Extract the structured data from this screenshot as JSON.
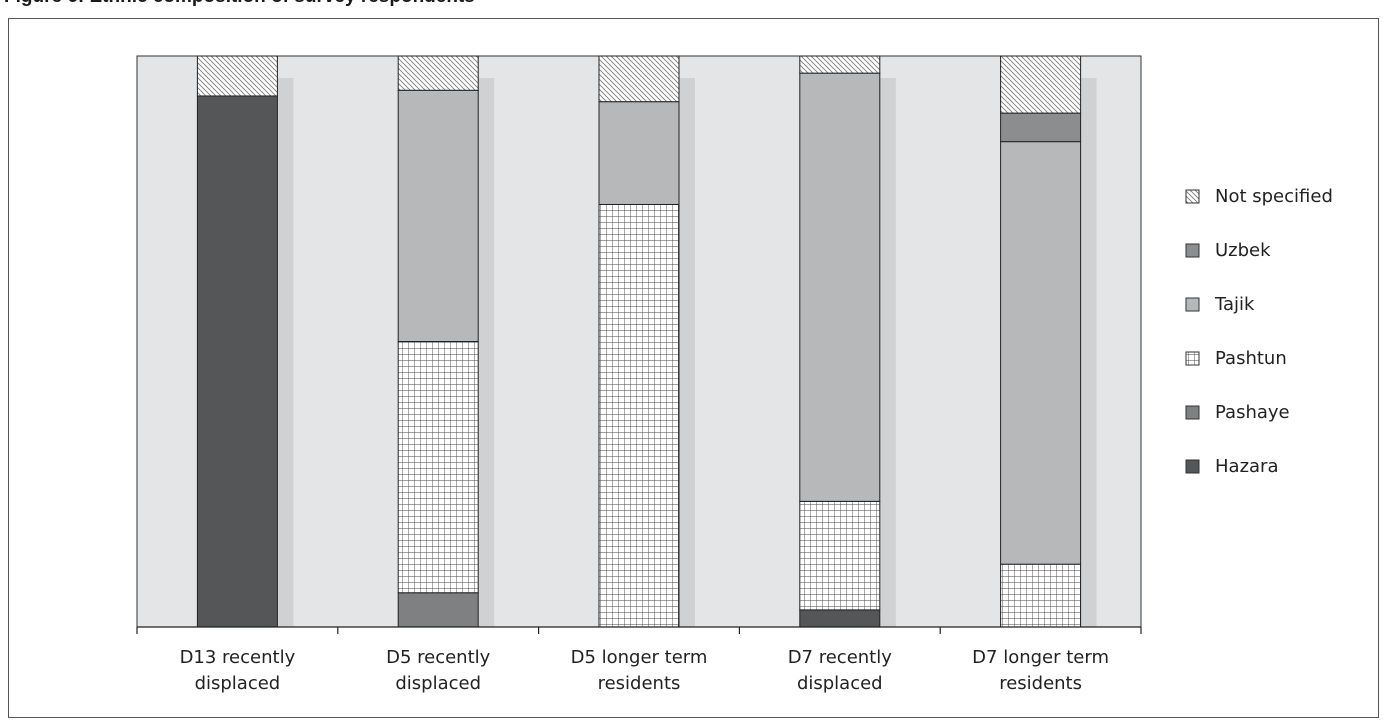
{
  "title": "Figure 6: Ethnic composition of survey respondents",
  "chart_data": {
    "type": "bar",
    "stacked": true,
    "percent_stacked": true,
    "categories": [
      [
        "D13 recently",
        "displaced"
      ],
      [
        "D5 recently",
        "displaced"
      ],
      [
        "D5 longer term",
        "residents"
      ],
      [
        "D7 recently",
        "displaced"
      ],
      [
        "D7 longer term",
        "residents"
      ]
    ],
    "series": [
      {
        "name": "Hazara",
        "values": [
          93,
          0,
          0,
          3,
          0
        ],
        "fill": "#555657",
        "pattern": "solid"
      },
      {
        "name": "Pashaye",
        "values": [
          0,
          6,
          0,
          0,
          0
        ],
        "fill": "#7f8081",
        "pattern": "solid"
      },
      {
        "name": "Pashtun",
        "values": [
          0,
          44,
          74,
          19,
          11
        ],
        "fill": "#ffffff",
        "pattern": "grid"
      },
      {
        "name": "Tajik",
        "values": [
          0,
          44,
          18,
          75,
          74
        ],
        "fill": "#b7b8ba",
        "pattern": "solid"
      },
      {
        "name": "Uzbek",
        "values": [
          0,
          0,
          0,
          0,
          5
        ],
        "fill": "#8c8d8e",
        "pattern": "solid"
      },
      {
        "name": "Not specified",
        "values": [
          7,
          6,
          8,
          3,
          10
        ],
        "fill": "#ffffff",
        "pattern": "hatch"
      }
    ],
    "ylim": [
      0,
      100
    ],
    "legend_position": "right",
    "legend_order": [
      "Not specified",
      "Uzbek",
      "Tajik",
      "Pashtun",
      "Pashaye",
      "Hazara"
    ],
    "plot_background": "#e4e5e6",
    "shadow_color": "#d0d1d2",
    "grid": false
  }
}
